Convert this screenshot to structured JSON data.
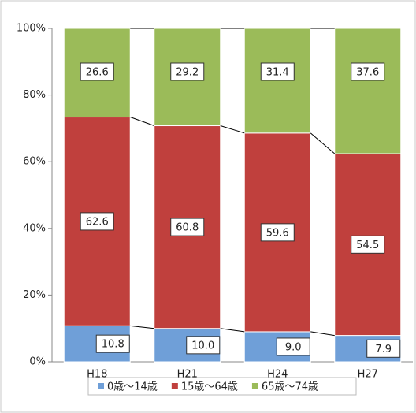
{
  "chart_data": {
    "type": "stacked-bar-100",
    "categories": [
      "H18",
      "H21",
      "H24",
      "H27"
    ],
    "series": [
      {
        "name": "0歳～14歳",
        "color": "#6f9fd8",
        "values": [
          10.8,
          10.0,
          9.0,
          7.9
        ],
        "value_labels": [
          "10.8",
          "10.0",
          "9.0",
          "7.9"
        ]
      },
      {
        "name": "15歳～64歳",
        "color": "#c0403d",
        "values": [
          62.6,
          60.8,
          59.6,
          54.5
        ],
        "value_labels": [
          "62.6",
          "60.8",
          "59.6",
          "54.5"
        ]
      },
      {
        "name": "65歳～74歳",
        "color": "#9bbb59",
        "values": [
          26.6,
          29.2,
          31.4,
          37.6
        ],
        "value_labels": [
          "26.6",
          "29.2",
          "31.4",
          "37.6"
        ]
      }
    ],
    "ylim": [
      0,
      100
    ],
    "yticks": [
      {
        "value": 0,
        "label": "0%"
      },
      {
        "value": 20,
        "label": "20%"
      },
      {
        "value": 40,
        "label": "40%"
      },
      {
        "value": 60,
        "label": "60%"
      },
      {
        "value": 80,
        "label": "80%"
      },
      {
        "value": 100,
        "label": "100%"
      }
    ],
    "legend": "bottom"
  }
}
